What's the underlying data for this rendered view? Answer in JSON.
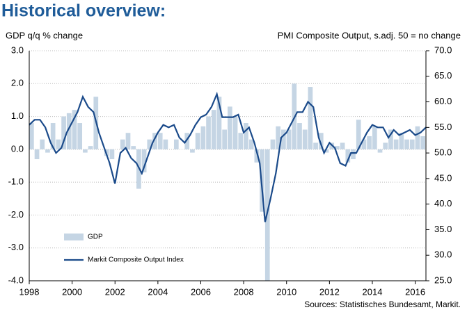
{
  "chart_data": {
    "type": "bar_line",
    "title": "Historical overview:",
    "y_label": "GDP q/q % change",
    "y2_label": "PMI Composite  Output, s.adj. 50 = no change",
    "source": "Sources: Statistisches Bundesamt, Markit.",
    "xlim": [
      1998,
      2016.5
    ],
    "xticks": [
      1998,
      2000,
      2002,
      2004,
      2006,
      2008,
      2010,
      2012,
      2014,
      2016
    ],
    "ylim": [
      -4,
      3
    ],
    "yticks": [
      {
        "value": 3,
        "label": "3.0"
      },
      {
        "value": 2,
        "label": "2.0"
      },
      {
        "value": 1,
        "label": "1.0"
      },
      {
        "value": 0,
        "label": "0.0"
      },
      {
        "value": -1,
        "label": "-1.0"
      },
      {
        "value": -2,
        "label": "-2.0"
      },
      {
        "value": -3,
        "label": "-3.0"
      },
      {
        "value": -4,
        "label": "-4.0"
      }
    ],
    "y2lim": [
      25,
      70
    ],
    "y2ticks": [
      {
        "value": 70,
        "label": "70.0"
      },
      {
        "value": 65,
        "label": "65.0"
      },
      {
        "value": 60,
        "label": "60.0"
      },
      {
        "value": 55,
        "label": "55.0"
      },
      {
        "value": 50,
        "label": "50.0"
      },
      {
        "value": 45,
        "label": "45.0"
      },
      {
        "value": 40,
        "label": "40.0"
      },
      {
        "value": 35,
        "label": "35.0"
      },
      {
        "value": 30,
        "label": "30.0"
      },
      {
        "value": 25,
        "label": "25.0"
      }
    ],
    "grid": true,
    "legend": "lower left",
    "series": [
      {
        "name": "GDP",
        "kind": "bar",
        "color": "#c5d5e4",
        "x": [
          1998,
          1998.25,
          1998.5,
          1998.75,
          1999,
          1999.25,
          1999.5,
          1999.75,
          2000,
          2000.25,
          2000.5,
          2000.75,
          2001,
          2001.25,
          2001.5,
          2001.75,
          2002,
          2002.25,
          2002.5,
          2002.75,
          2003,
          2003.25,
          2003.5,
          2003.75,
          2004,
          2004.25,
          2004.5,
          2004.75,
          2005,
          2005.25,
          2005.5,
          2005.75,
          2006,
          2006.25,
          2006.5,
          2006.75,
          2007,
          2007.25,
          2007.5,
          2007.75,
          2008,
          2008.25,
          2008.5,
          2008.75,
          2009,
          2009.25,
          2009.5,
          2009.75,
          2010,
          2010.25,
          2010.5,
          2010.75,
          2011,
          2011.25,
          2011.5,
          2011.75,
          2012,
          2012.25,
          2012.5,
          2012.75,
          2013,
          2013.25,
          2013.5,
          2013.75,
          2014,
          2014.25,
          2014.5,
          2014.75,
          2015,
          2015.25,
          2015.5,
          2015.75,
          2016,
          2016.25
        ],
        "values": [
          0.8,
          -0.3,
          0.3,
          -0.1,
          0.8,
          0.3,
          1.0,
          1.1,
          1.2,
          0.8,
          -0.1,
          0.1,
          1.6,
          0.0,
          -0.2,
          -0.3,
          0.0,
          0.3,
          0.5,
          0.1,
          -1.2,
          -0.7,
          0.3,
          0.5,
          0.5,
          0.3,
          0.0,
          0.3,
          0.0,
          0.5,
          -0.1,
          0.5,
          0.7,
          1.0,
          1.2,
          1.6,
          0.6,
          1.3,
          1.0,
          0.5,
          0.8,
          0.3,
          -0.4,
          -1.9,
          -4.0,
          0.3,
          0.7,
          0.6,
          0.6,
          2.0,
          0.8,
          0.6,
          1.9,
          0.2,
          0.5,
          -0.1,
          0.2,
          0.1,
          0.2,
          -0.4,
          -0.3,
          0.9,
          0.3,
          0.4,
          0.7,
          -0.1,
          0.2,
          0.6,
          0.3,
          0.5,
          0.3,
          0.3,
          0.7,
          0.4
        ]
      },
      {
        "name": "Markit Composite Output Index",
        "kind": "line",
        "axis": "y2",
        "color": "#1a4a8a",
        "x": [
          1998,
          1998.25,
          1998.5,
          1998.75,
          1999,
          1999.25,
          1999.5,
          1999.75,
          2000,
          2000.25,
          2000.5,
          2000.75,
          2001,
          2001.25,
          2001.5,
          2001.75,
          2002,
          2002.25,
          2002.5,
          2002.75,
          2003,
          2003.25,
          2003.5,
          2003.75,
          2004,
          2004.25,
          2004.5,
          2004.75,
          2005,
          2005.25,
          2005.5,
          2005.75,
          2006,
          2006.25,
          2006.5,
          2006.75,
          2007,
          2007.25,
          2007.5,
          2007.75,
          2008,
          2008.25,
          2008.5,
          2008.75,
          2009,
          2009.25,
          2009.5,
          2009.75,
          2010,
          2010.25,
          2010.5,
          2010.75,
          2011,
          2011.25,
          2011.5,
          2011.75,
          2012,
          2012.25,
          2012.5,
          2012.75,
          2013,
          2013.25,
          2013.5,
          2013.75,
          2014,
          2014.25,
          2014.5,
          2014.75,
          2015,
          2015.25,
          2015.5,
          2015.75,
          2016,
          2016.25,
          2016.5
        ],
        "values": [
          55.5,
          56.5,
          56.5,
          55,
          52,
          50,
          51,
          54,
          56,
          58,
          61,
          59,
          58,
          54,
          51,
          48,
          44,
          50,
          51,
          49,
          48,
          46,
          49,
          52,
          54,
          55.5,
          55,
          55.5,
          53,
          52,
          53.5,
          55.5,
          57,
          57.5,
          59,
          61.5,
          57,
          57,
          57,
          57.5,
          54,
          55,
          52,
          48,
          36.5,
          41,
          46,
          53,
          54,
          56,
          58,
          58,
          60,
          59,
          53,
          50,
          52,
          51,
          48,
          47.5,
          50,
          50,
          52,
          54,
          55.5,
          55,
          55,
          53,
          54.5,
          53.5,
          54,
          54.5,
          53.5,
          54,
          55
        ]
      }
    ]
  }
}
